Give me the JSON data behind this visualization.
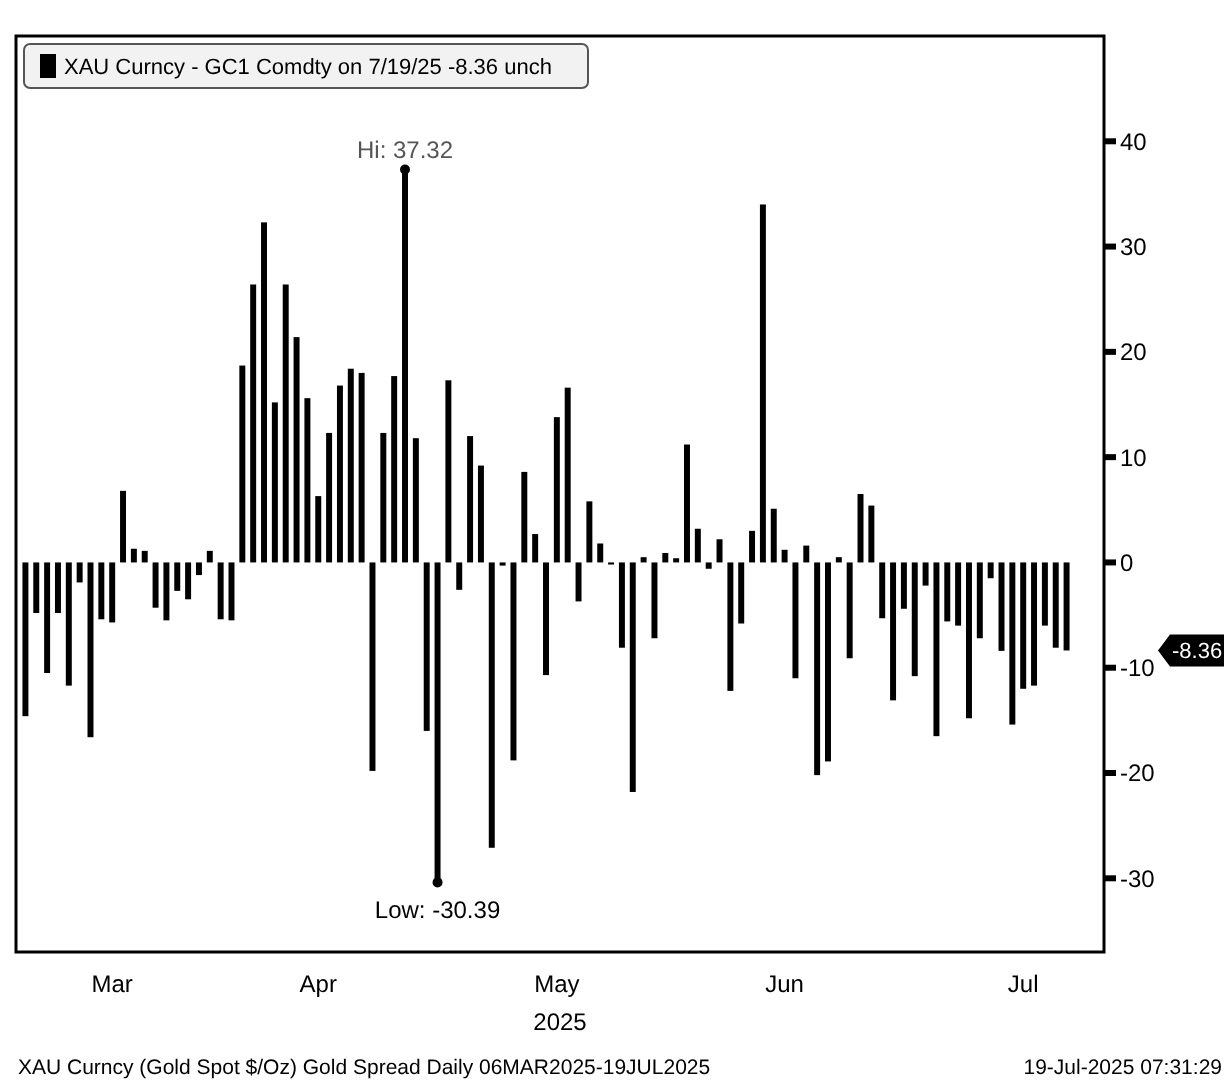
{
  "chart_data": {
    "type": "bar",
    "xlabel": "2025",
    "categories": [
      null,
      null,
      null,
      null,
      null,
      null,
      null,
      null,
      "Mar",
      null,
      null,
      null,
      null,
      null,
      null,
      null,
      null,
      null,
      null,
      null,
      null,
      null,
      null,
      null,
      null,
      null,
      null,
      "Apr",
      null,
      null,
      null,
      null,
      null,
      null,
      null,
      null,
      null,
      null,
      null,
      null,
      null,
      null,
      null,
      null,
      null,
      null,
      null,
      null,
      null,
      "May",
      null,
      null,
      null,
      null,
      null,
      null,
      null,
      null,
      null,
      null,
      null,
      null,
      null,
      null,
      null,
      null,
      null,
      null,
      null,
      null,
      "Jun",
      null,
      null,
      null,
      null,
      null,
      null,
      null,
      null,
      null,
      null,
      null,
      null,
      null,
      null,
      null,
      null,
      null,
      null,
      null,
      null,
      null,
      "Jul",
      null,
      null,
      null,
      null
    ],
    "series": [
      {
        "name": "XAU Curncy - GC1 Comdty on 7/19/25 -8.36  unch",
        "color": "#000000",
        "values": [
          -14.6,
          -4.8,
          -10.5,
          -4.8,
          -11.7,
          -1.9,
          -16.6,
          -5.4,
          -5.7,
          6.8,
          1.3,
          1.1,
          -4.3,
          -5.5,
          -2.7,
          -3.5,
          -1.2,
          1.1,
          -5.4,
          -5.5,
          18.7,
          26.4,
          32.3,
          15.2,
          26.4,
          21.4,
          15.6,
          6.3,
          12.3,
          16.8,
          18.4,
          18.0,
          -19.8,
          12.3,
          17.7,
          37.32,
          11.8,
          -16.0,
          -30.39,
          17.3,
          -2.6,
          12.0,
          9.2,
          -27.1,
          -0.3,
          -18.8,
          8.6,
          2.7,
          -10.7,
          13.8,
          16.6,
          -3.7,
          5.8,
          1.8,
          -0.2,
          -8.1,
          -21.8,
          0.5,
          -7.2,
          0.9,
          0.4,
          11.2,
          3.2,
          -0.6,
          2.2,
          -12.2,
          -5.8,
          3.0,
          34.0,
          5.1,
          1.2,
          -11.0,
          1.6,
          -20.2,
          -18.9,
          0.5,
          -9.1,
          6.5,
          5.4,
          -5.3,
          -13.1,
          -4.4,
          -10.8,
          -2.2,
          -16.5,
          -5.6,
          -6.0,
          -14.8,
          -7.2,
          -1.5,
          -8.4,
          -15.4,
          -12.0,
          -11.7,
          -6.0,
          -8.1,
          -8.36
        ]
      }
    ],
    "ylim": [
      -37,
      50
    ],
    "yticks": [
      -30,
      -20,
      -10,
      0,
      10,
      20,
      30,
      40
    ],
    "legend": "top left",
    "annotations": [
      {
        "text": "Hi: 37.32",
        "y": 37.32
      },
      {
        "text": "Low: -30.39",
        "y": -30.39
      },
      "-8.36",
      "XAU Curncy (Gold Spot  $/Oz) Gold Spread  Daily 06MAR2025-19JUL2025",
      "19-Jul-2025 07:31:29"
    ]
  }
}
